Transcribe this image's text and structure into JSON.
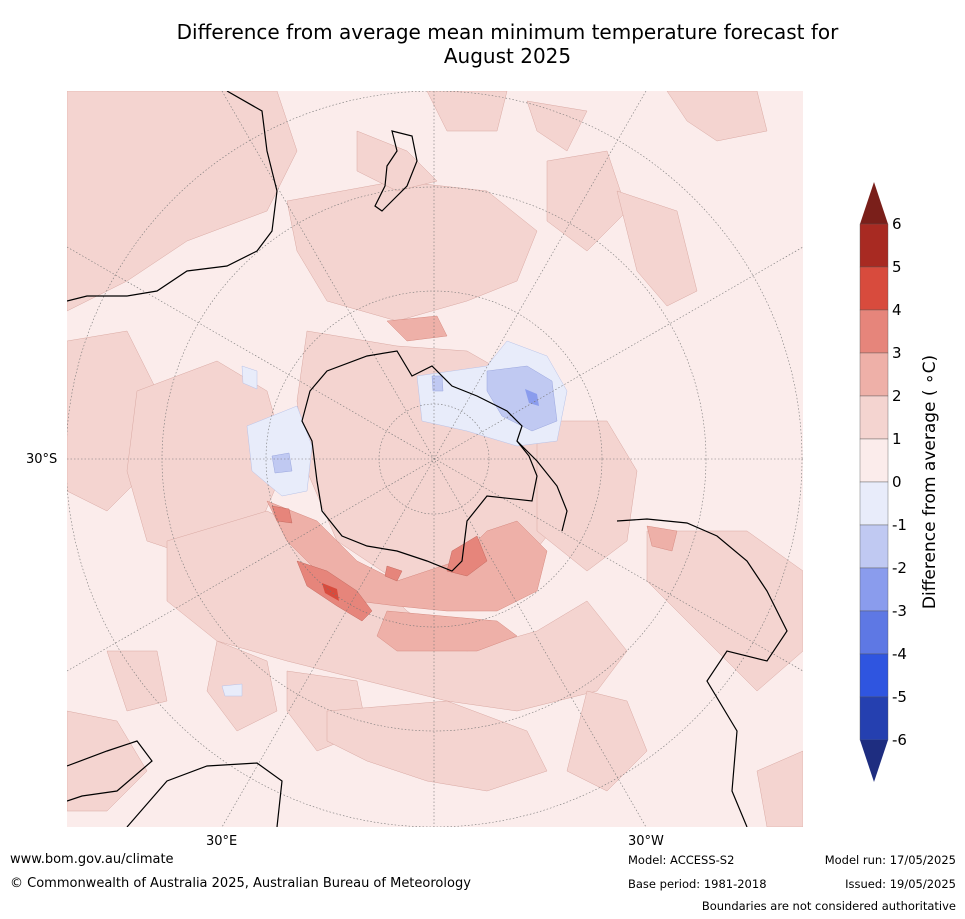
{
  "title_line1": "Difference from average mean minimum temperature forecast for",
  "title_line2": "August 2025",
  "map": {
    "projection": "south-polar-stereographic",
    "graticule_labels": {
      "lat": "30°S",
      "lon_left": "30°E",
      "lon_right": "30°W"
    }
  },
  "colorbar": {
    "label": "Difference from average ( ∘C)",
    "ticks": [
      "6",
      "5",
      "4",
      "3",
      "2",
      "1",
      "0",
      "-1",
      "-2",
      "-3",
      "-4",
      "-5",
      "-6"
    ],
    "colors": {
      "over": "#7a1f1a",
      "6_5": "#a82a22",
      "5_4": "#d84b3d",
      "4_3": "#e6857b",
      "3_2": "#eeb0a8",
      "2_1": "#f4d4d0",
      "1_0": "#fbeceb",
      "0_-1": "#e8ecfa",
      "-1_-2": "#c0c9f2",
      "-2_-3": "#8a9ced",
      "-3_-4": "#5e78e4",
      "-4_-5": "#2f55e0",
      "-5_-6": "#2540b0",
      "under": "#1e2d80"
    }
  },
  "footer": {
    "website": "www.bom.gov.au/climate",
    "copyright": "© Commonwealth of Australia 2025, Australian Bureau of Meteorology",
    "model": "Model: ACCESS-S2",
    "base_period": "Base period: 1981-2018",
    "model_run": "Model run: 17/05/2025",
    "issued": "Issued: 19/05/2025",
    "disclaimer": "Boundaries are not considered authoritative"
  }
}
